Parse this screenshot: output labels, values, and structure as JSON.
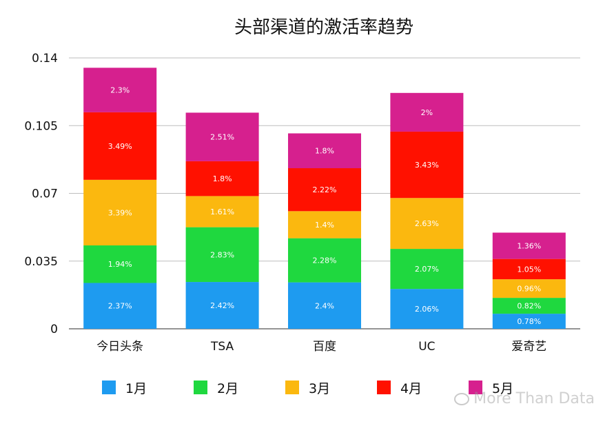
{
  "chart_data": {
    "type": "bar",
    "stacked": true,
    "title": "头部渠道的激活率趋势",
    "xlabel": "",
    "ylabel": "",
    "categories": [
      "今日头条",
      "TSA",
      "百度",
      "UC",
      "爱奇艺"
    ],
    "ylim": [
      0,
      0.14
    ],
    "yticks": [
      "0",
      "0.035",
      "0.07",
      "0.105",
      "0.14"
    ],
    "grid": true,
    "legend_position": "bottom",
    "series": [
      {
        "name": "1月",
        "color": "#1E9BF0",
        "values": [
          0.0237,
          0.0242,
          0.024,
          0.0206,
          0.0078
        ],
        "labels": [
          "2.37%",
          "2.42%",
          "2.4%",
          "2.06%",
          "0.78%"
        ]
      },
      {
        "name": "2月",
        "color": "#1FD83F",
        "values": [
          0.0194,
          0.0283,
          0.0228,
          0.0207,
          0.0082
        ],
        "labels": [
          "1.94%",
          "2.83%",
          "2.28%",
          "2.07%",
          "0.82%"
        ]
      },
      {
        "name": "3月",
        "color": "#FBB80F",
        "values": [
          0.0339,
          0.0161,
          0.014,
          0.0263,
          0.0096
        ],
        "labels": [
          "3.39%",
          "1.61%",
          "1.4%",
          "2.63%",
          "0.96%"
        ]
      },
      {
        "name": "4月",
        "color": "#FF1100",
        "values": [
          0.0349,
          0.018,
          0.0222,
          0.0343,
          0.0105
        ],
        "labels": [
          "3.49%",
          "1.8%",
          "2.22%",
          "3.43%",
          "1.05%"
        ]
      },
      {
        "name": "5月",
        "color": "#D6208E",
        "values": [
          0.023,
          0.0251,
          0.018,
          0.02,
          0.0136
        ],
        "labels": [
          "2.3%",
          "2.51%",
          "1.8%",
          "2%",
          "1.36%"
        ]
      }
    ]
  },
  "watermark": {
    "text": "More Than Data",
    "icon": "wechat-icon"
  }
}
